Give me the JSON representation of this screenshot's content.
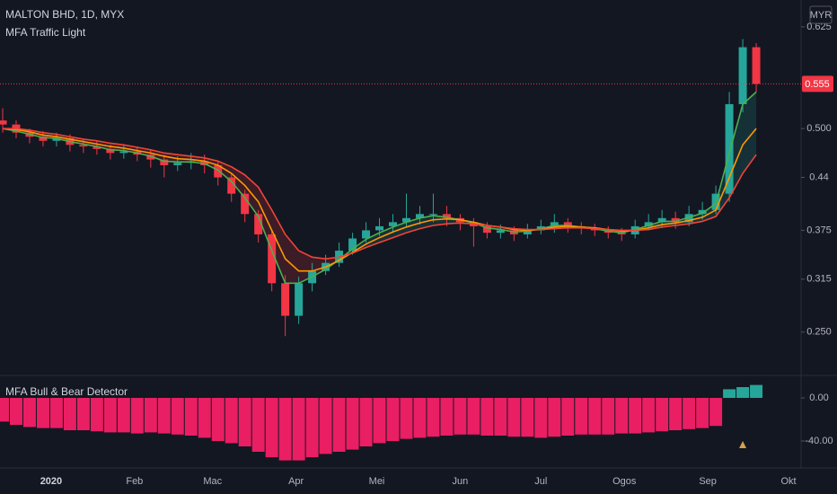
{
  "chart_data": [
    {
      "type": "candlestick",
      "title": "MALTON BHD, 1D, MYX",
      "subtitle": "MFA Traffic Light",
      "currency": "MYR",
      "x": [
        -18,
        -13,
        -8,
        -3,
        2,
        7,
        12,
        17,
        22,
        27,
        32,
        37,
        42,
        47,
        52,
        57,
        62,
        67,
        72,
        77,
        82,
        87,
        92,
        97,
        102,
        107,
        112,
        117,
        122,
        127,
        132,
        137,
        142,
        147,
        152,
        157,
        162,
        167,
        172,
        177,
        182,
        187,
        192,
        197,
        202,
        207,
        212,
        217,
        222,
        227,
        232,
        237,
        242,
        247,
        252,
        257,
        262
      ],
      "open": [
        0.51,
        0.505,
        0.495,
        0.49,
        0.485,
        0.488,
        0.48,
        0.478,
        0.475,
        0.47,
        0.472,
        0.468,
        0.462,
        0.455,
        0.458,
        0.46,
        0.455,
        0.44,
        0.42,
        0.395,
        0.37,
        0.31,
        0.27,
        0.31,
        0.325,
        0.335,
        0.35,
        0.365,
        0.375,
        0.38,
        0.385,
        0.39,
        0.395,
        0.395,
        0.39,
        0.385,
        0.38,
        0.372,
        0.375,
        0.37,
        0.375,
        0.38,
        0.385,
        0.38,
        0.378,
        0.375,
        0.372,
        0.37,
        0.38,
        0.385,
        0.39,
        0.385,
        0.395,
        0.4,
        0.42,
        0.53,
        0.6
      ],
      "high": [
        0.525,
        0.51,
        0.5,
        0.497,
        0.495,
        0.493,
        0.487,
        0.485,
        0.48,
        0.48,
        0.478,
        0.474,
        0.468,
        0.466,
        0.47,
        0.468,
        0.46,
        0.445,
        0.425,
        0.4,
        0.375,
        0.32,
        0.318,
        0.335,
        0.345,
        0.36,
        0.372,
        0.385,
        0.39,
        0.395,
        0.42,
        0.405,
        0.42,
        0.405,
        0.395,
        0.39,
        0.385,
        0.382,
        0.38,
        0.383,
        0.388,
        0.395,
        0.39,
        0.385,
        0.383,
        0.38,
        0.378,
        0.388,
        0.395,
        0.4,
        0.398,
        0.405,
        0.41,
        0.43,
        0.545,
        0.61,
        0.605
      ],
      "low": [
        0.495,
        0.488,
        0.482,
        0.478,
        0.478,
        0.472,
        0.47,
        0.468,
        0.462,
        0.463,
        0.46,
        0.452,
        0.44,
        0.448,
        0.45,
        0.445,
        0.43,
        0.41,
        0.385,
        0.36,
        0.3,
        0.245,
        0.26,
        0.3,
        0.32,
        0.33,
        0.345,
        0.36,
        0.368,
        0.372,
        0.38,
        0.382,
        0.385,
        0.38,
        0.375,
        0.355,
        0.365,
        0.365,
        0.362,
        0.365,
        0.37,
        0.372,
        0.372,
        0.37,
        0.368,
        0.365,
        0.362,
        0.365,
        0.375,
        0.378,
        0.377,
        0.38,
        0.388,
        0.395,
        0.41,
        0.52,
        0.545
      ],
      "close": [
        0.505,
        0.495,
        0.49,
        0.485,
        0.488,
        0.48,
        0.478,
        0.475,
        0.47,
        0.472,
        0.468,
        0.462,
        0.455,
        0.458,
        0.46,
        0.455,
        0.44,
        0.42,
        0.395,
        0.37,
        0.31,
        0.27,
        0.31,
        0.325,
        0.335,
        0.35,
        0.365,
        0.375,
        0.38,
        0.385,
        0.39,
        0.395,
        0.395,
        0.39,
        0.385,
        0.38,
        0.372,
        0.375,
        0.37,
        0.375,
        0.38,
        0.385,
        0.38,
        0.378,
        0.375,
        0.372,
        0.37,
        0.38,
        0.385,
        0.39,
        0.385,
        0.395,
        0.4,
        0.42,
        0.53,
        0.6,
        0.555
      ],
      "up_color": "#26a69a",
      "down_color": "#f23645",
      "series": [
        {
          "color": "#4caf50",
          "values": [
            0.5,
            0.497,
            0.493,
            0.489,
            0.488,
            0.484,
            0.481,
            0.478,
            0.474,
            0.473,
            0.47,
            0.466,
            0.46,
            0.459,
            0.459,
            0.457,
            0.449,
            0.435,
            0.415,
            0.392,
            0.35,
            0.31,
            0.31,
            0.318,
            0.327,
            0.339,
            0.352,
            0.364,
            0.372,
            0.379,
            0.385,
            0.39,
            0.393,
            0.391,
            0.388,
            0.384,
            0.378,
            0.376,
            0.373,
            0.374,
            0.377,
            0.381,
            0.381,
            0.379,
            0.377,
            0.374,
            0.372,
            0.376,
            0.381,
            0.386,
            0.386,
            0.391,
            0.396,
            0.408,
            0.47,
            0.53,
            0.545
          ]
        },
        {
          "color": "#ff9800",
          "values": [
            0.5,
            0.499,
            0.496,
            0.492,
            0.49,
            0.487,
            0.484,
            0.481,
            0.478,
            0.476,
            0.473,
            0.47,
            0.466,
            0.463,
            0.462,
            0.46,
            0.455,
            0.445,
            0.43,
            0.41,
            0.375,
            0.34,
            0.325,
            0.325,
            0.33,
            0.338,
            0.348,
            0.358,
            0.366,
            0.373,
            0.379,
            0.384,
            0.388,
            0.389,
            0.388,
            0.385,
            0.381,
            0.379,
            0.376,
            0.375,
            0.376,
            0.379,
            0.38,
            0.379,
            0.378,
            0.376,
            0.374,
            0.375,
            0.378,
            0.382,
            0.384,
            0.387,
            0.391,
            0.4,
            0.44,
            0.48,
            0.5
          ]
        },
        {
          "color": "#f44336",
          "values": [
            0.5,
            0.5,
            0.498,
            0.495,
            0.493,
            0.49,
            0.487,
            0.485,
            0.482,
            0.48,
            0.477,
            0.474,
            0.47,
            0.468,
            0.466,
            0.464,
            0.46,
            0.453,
            0.443,
            0.428,
            0.4,
            0.37,
            0.35,
            0.342,
            0.34,
            0.342,
            0.347,
            0.354,
            0.36,
            0.366,
            0.372,
            0.377,
            0.381,
            0.383,
            0.384,
            0.383,
            0.381,
            0.379,
            0.377,
            0.376,
            0.376,
            0.377,
            0.378,
            0.378,
            0.377,
            0.376,
            0.375,
            0.375,
            0.376,
            0.379,
            0.381,
            0.383,
            0.386,
            0.392,
            0.415,
            0.445,
            0.468
          ]
        }
      ],
      "cloud_up_color": "#26a69a",
      "cloud_down_color": "#f23645",
      "last_price": 0.555,
      "last_price_color": "#f23645",
      "xlim": [
        -19,
        278
      ],
      "xticks": [
        {
          "value": 0,
          "label": "2020"
        },
        {
          "value": 31,
          "label": "Feb"
        },
        {
          "value": 60,
          "label": "Mac"
        },
        {
          "value": 91,
          "label": "Apr"
        },
        {
          "value": 121,
          "label": "Mei"
        },
        {
          "value": 152,
          "label": "Jun"
        },
        {
          "value": 182,
          "label": "Jul"
        },
        {
          "value": 213,
          "label": "Ogos"
        },
        {
          "value": 244,
          "label": "Sep"
        },
        {
          "value": 274,
          "label": "Okt"
        }
      ],
      "ylim": [
        0.2,
        0.658
      ],
      "yticks": [
        0.625,
        {
          "value": 0.5,
          "label": "0.500"
        },
        0.44,
        0.375,
        0.315,
        {
          "value": 0.25,
          "label": "0.250"
        }
      ]
    },
    {
      "type": "bar",
      "title": "MFA Bull & Bear Detector",
      "x": [
        -18,
        -13,
        -8,
        -3,
        2,
        7,
        12,
        17,
        22,
        27,
        32,
        37,
        42,
        47,
        52,
        57,
        62,
        67,
        72,
        77,
        82,
        87,
        92,
        97,
        102,
        107,
        112,
        117,
        122,
        127,
        132,
        137,
        142,
        147,
        152,
        157,
        162,
        167,
        172,
        177,
        182,
        187,
        192,
        197,
        202,
        207,
        212,
        217,
        222,
        227,
        232,
        237,
        242,
        247,
        252,
        257,
        262
      ],
      "values": [
        -22,
        -25,
        -27,
        -28,
        -28,
        -30,
        -30,
        -31,
        -32,
        -32,
        -33,
        -32,
        -33,
        -34,
        -35,
        -37,
        -40,
        -42,
        -45,
        -50,
        -55,
        -58,
        -58,
        -55,
        -52,
        -50,
        -48,
        -45,
        -42,
        -40,
        -38,
        -37,
        -36,
        -35,
        -34,
        -34,
        -35,
        -35,
        -36,
        -36,
        -37,
        -36,
        -35,
        -34,
        -34,
        -34,
        -33,
        -33,
        -32,
        -31,
        -30,
        -29,
        -28,
        -26,
        8,
        10,
        12
      ],
      "up_color": "#26a69a",
      "down_color": "#e91e63",
      "signals": {
        "x": [
          257
        ],
        "color": "#d4a24c"
      },
      "xlim": [
        -19,
        278
      ],
      "ylim": [
        -65,
        20
      ],
      "yticks": [
        {
          "value": 0,
          "label": "0.00"
        },
        {
          "value": -40,
          "label": "-40.00"
        }
      ]
    }
  ]
}
